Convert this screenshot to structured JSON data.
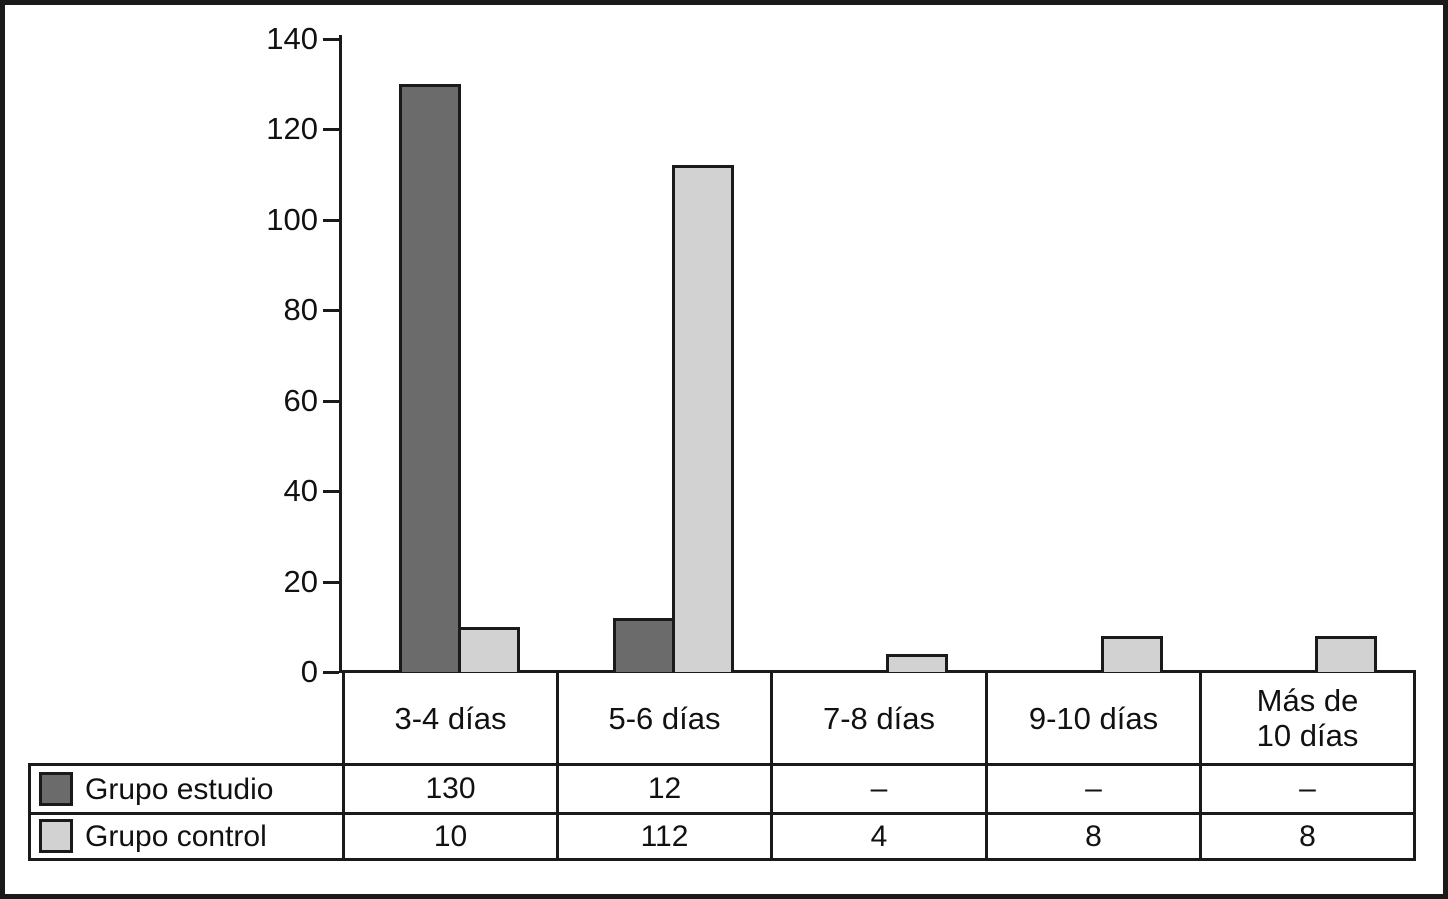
{
  "chart_data": {
    "type": "bar",
    "title": "",
    "xlabel": "",
    "ylabel": "",
    "ylim": [
      0,
      140
    ],
    "y_ticks": [
      0,
      20,
      40,
      60,
      80,
      100,
      120,
      140
    ],
    "grid": false,
    "legend_position": "table-rows-bottom-left",
    "categories": [
      {
        "label_lines": [
          "3-4 días"
        ]
      },
      {
        "label_lines": [
          "5-6 días"
        ]
      },
      {
        "label_lines": [
          "7-8 días"
        ]
      },
      {
        "label_lines": [
          "9-10 días"
        ]
      },
      {
        "label_lines": [
          "Más de",
          "10 días"
        ]
      }
    ],
    "series": [
      {
        "key": "grupo-estudio",
        "name": "Grupo estudio",
        "color": "#6b6b6b",
        "values": [
          130,
          12,
          null,
          null,
          null
        ],
        "display": [
          "130",
          "12",
          "–",
          "–",
          "–"
        ]
      },
      {
        "key": "grupo-control",
        "name": "Grupo control",
        "color": "#d2d2d2",
        "values": [
          10,
          112,
          4,
          8,
          8
        ],
        "display": [
          "10",
          "112",
          "4",
          "8",
          "8"
        ]
      }
    ]
  },
  "colors": {
    "line": "#1a1a1a",
    "background": "#ffffff",
    "series_dark": "#6b6b6b",
    "series_light": "#d2d2d2"
  }
}
